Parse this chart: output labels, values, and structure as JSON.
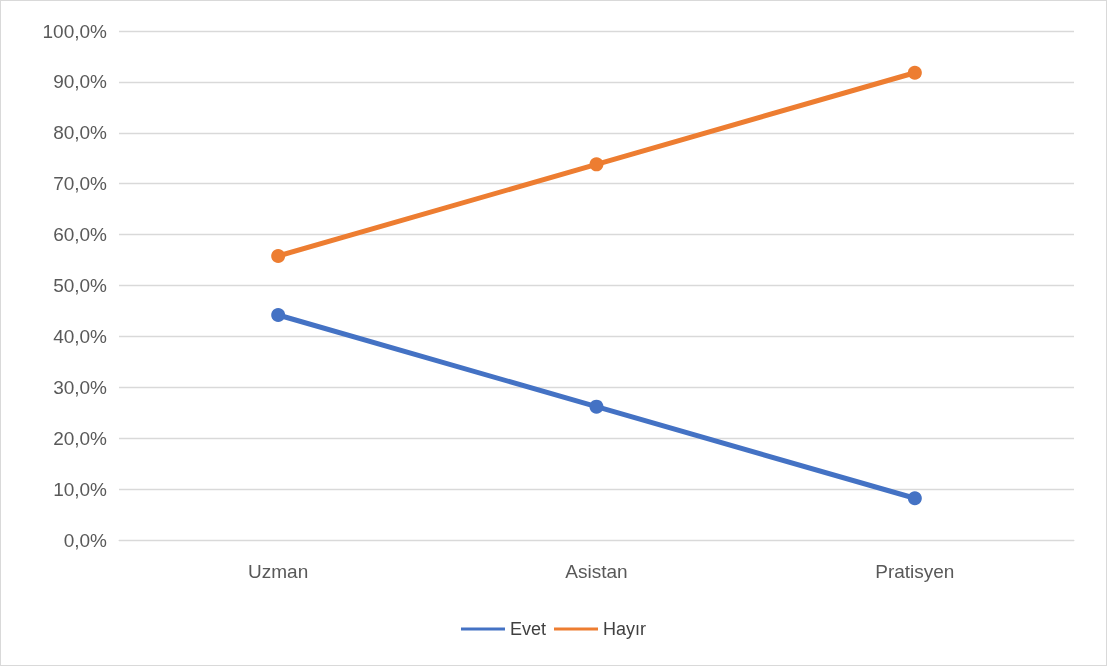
{
  "chart_data": {
    "type": "line",
    "categories": [
      "Uzman",
      "Asistan",
      "Pratisyen"
    ],
    "series": [
      {
        "name": "Evet",
        "color": "#4472c4",
        "values": [
          44.2,
          26.2,
          8.2
        ]
      },
      {
        "name": "Hayır",
        "color": "#ed7d31",
        "values": [
          55.8,
          73.8,
          91.8
        ]
      }
    ],
    "ylim": [
      0,
      100
    ],
    "yticks": [
      {
        "value": 0,
        "label": "0,0%"
      },
      {
        "value": 10,
        "label": "10,0%"
      },
      {
        "value": 20,
        "label": "20,0%"
      },
      {
        "value": 30,
        "label": "30,0%"
      },
      {
        "value": 40,
        "label": "40,0%"
      },
      {
        "value": 50,
        "label": "50,0%"
      },
      {
        "value": 60,
        "label": "60,0%"
      },
      {
        "value": 70,
        "label": "70,0%"
      },
      {
        "value": 80,
        "label": "80,0%"
      },
      {
        "value": 90,
        "label": "90,0%"
      },
      {
        "value": 100,
        "label": "100,0%"
      }
    ],
    "grid": "y",
    "legend": "bottom",
    "marker": "circle",
    "line_style": "solid"
  }
}
